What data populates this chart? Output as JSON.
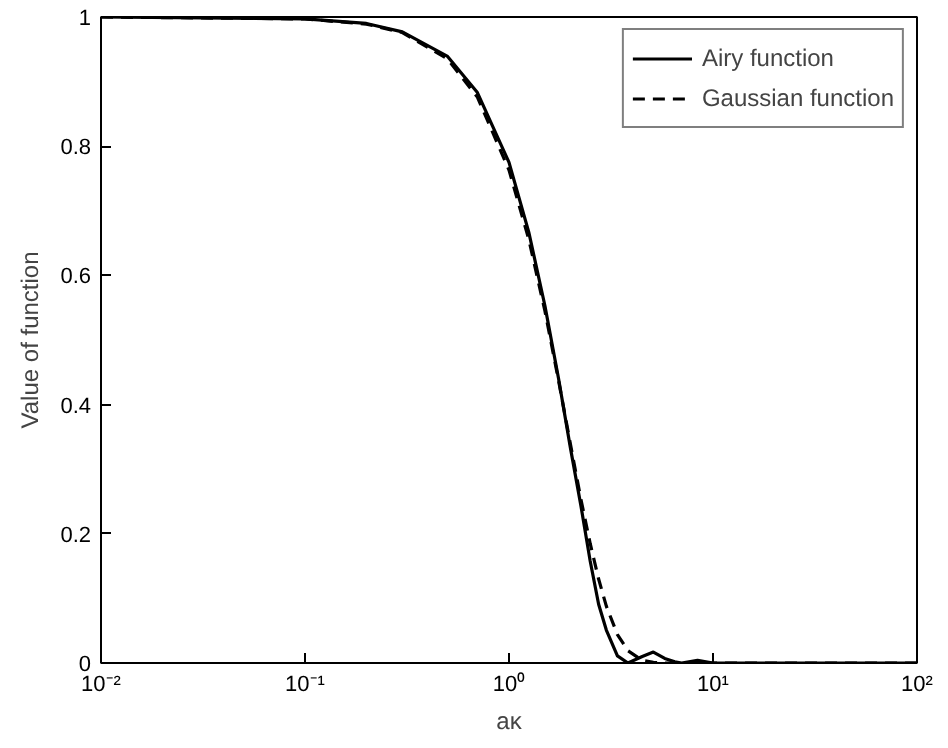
{
  "chart_data": {
    "type": "line",
    "xlabel": "aκ",
    "ylabel": "Value of function",
    "log": "x",
    "grid": false,
    "legend": "top right",
    "marker": "none",
    "xlim": [
      0.01,
      100
    ],
    "ylim": [
      0,
      1
    ],
    "xticks": [
      {
        "value": 0.01,
        "label": "10⁻²"
      },
      {
        "value": 0.1,
        "label": "10⁻¹"
      },
      {
        "value": 1,
        "label": "10⁰"
      },
      {
        "value": 10,
        "label": "10¹"
      },
      {
        "value": 100,
        "label": "10²"
      }
    ],
    "yticks": [
      0,
      0.2,
      0.4,
      0.6,
      0.8,
      1
    ],
    "x": [
      0.01,
      0.1,
      0.2,
      0.3,
      0.5,
      0.7,
      1,
      1.25,
      1.5,
      1.75,
      2,
      2.25,
      2.5,
      2.75,
      3,
      3.4,
      3.83,
      4.5,
      5.1,
      5.8,
      6.5,
      7.02,
      8.4,
      10,
      12,
      100
    ],
    "series": [
      {
        "name": "Airy function",
        "color": "#000000",
        "line_style": "solid",
        "values": [
          1,
          0.997,
          0.99,
          0.977,
          0.939,
          0.883,
          0.775,
          0.667,
          0.553,
          0.44,
          0.333,
          0.244,
          0.158,
          0.091,
          0.051,
          0.011,
          0,
          0.01,
          0.017,
          0.007,
          0.002,
          0,
          0.004,
          0,
          0,
          0
        ]
      },
      {
        "name": "Gaussian function",
        "color": "#000000",
        "line_style": "dashed",
        "values": [
          1,
          0.997,
          0.989,
          0.976,
          0.935,
          0.876,
          0.763,
          0.656,
          0.545,
          0.437,
          0.339,
          0.254,
          0.185,
          0.13,
          0.088,
          0.044,
          0.019,
          0.004,
          0.001,
          0,
          0,
          0,
          0,
          0,
          0,
          0
        ]
      }
    ]
  }
}
